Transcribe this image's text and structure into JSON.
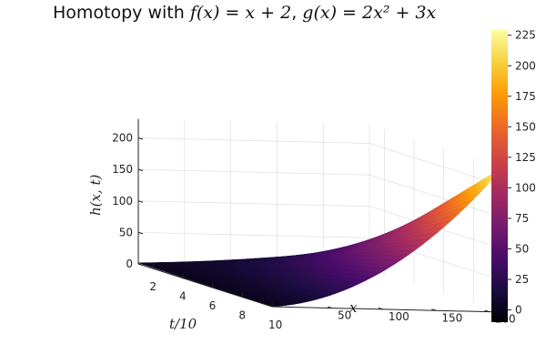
{
  "chart_data": {
    "type": "surface",
    "title": "Homotopy with f(x) = x + 2, g(x) = 2x² + 3x",
    "title_parts": {
      "prefix": "Homotopy with ",
      "fx": "f(x) = x + 2",
      "sep": ", ",
      "gx": "g(x) = 2x² + 3x"
    },
    "xlabel": "t/10",
    "ylabel": "x",
    "zlabel": "h(x, t)",
    "x_ticks": [
      "2",
      "4",
      "6",
      "8",
      "10"
    ],
    "y_ticks": [
      "50",
      "100",
      "150",
      "200"
    ],
    "z_ticks": [
      "0",
      "50",
      "100",
      "150",
      "200"
    ],
    "colorbar_ticks": [
      "0",
      "25",
      "50",
      "75",
      "100",
      "125",
      "150",
      "175",
      "200",
      "225"
    ],
    "t_range": [
      1,
      10
    ],
    "x_range": [
      0,
      10
    ],
    "zlim": [
      -10,
      230
    ],
    "colorbar_range": [
      -10,
      230
    ],
    "colormap": "inferno",
    "grid": true,
    "colors": {
      "inferno_stops": [
        "#000004",
        "#1b0c41",
        "#4a0c6b",
        "#781c6d",
        "#a52c60",
        "#cf4446",
        "#ed6925",
        "#fb9b06",
        "#f7d13d",
        "#fcffa4"
      ],
      "axis": "#222222",
      "grid": "#d9d9d9"
    }
  }
}
